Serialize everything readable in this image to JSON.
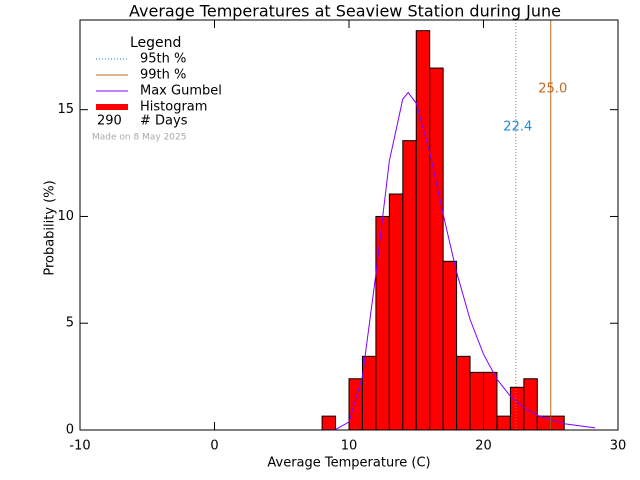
{
  "chart_data": {
    "type": "histogram",
    "title": "Average Temperatures at Seaview Station during June",
    "xlabel": "Average Temperature (C)",
    "ylabel": "Probability (%)",
    "name": "Histogram",
    "color": "#ff0000",
    "bins": [
      8,
      9,
      10,
      11,
      12,
      13,
      14,
      15,
      16,
      17,
      18,
      19,
      20,
      21,
      22,
      23,
      24,
      25,
      26
    ],
    "counts": [
      0.65,
      0,
      2.4,
      3.45,
      10.0,
      11.05,
      13.55,
      18.7,
      16.95,
      7.9,
      3.45,
      2.7,
      2.7,
      0.65,
      2.0,
      2.4,
      0.65,
      0.65
    ],
    "xlim": [
      -10,
      30
    ],
    "ylim": [
      0,
      19.2
    ],
    "xticks": [
      -10,
      0,
      10,
      20,
      30
    ],
    "yticks": [
      0,
      5,
      10,
      15
    ],
    "curve": {
      "name": "Max Gumbel",
      "color": "#8000ff",
      "x": [
        8,
        9,
        10,
        11,
        12,
        13,
        14,
        14.4,
        15,
        16,
        17,
        18,
        19,
        20,
        21,
        22,
        23,
        24,
        26,
        28.3
      ],
      "values": [
        0,
        0.02,
        0.38,
        2.51,
        7.3,
        12.6,
        15.5,
        15.8,
        15.3,
        13.0,
        10.1,
        7.39,
        5.18,
        3.55,
        2.38,
        1.58,
        1.04,
        0.69,
        0.29,
        0.1
      ]
    },
    "percentiles": [
      {
        "name": "95th %",
        "value": 22.4,
        "value_label": "22.4",
        "color": "#b08040",
        "label_color": "#1e88d8",
        "dash": true
      },
      {
        "name": "99th %",
        "value": 25.0,
        "value_label": "25.0",
        "color": "#c06a20",
        "label_color": "#c06a20",
        "dash": false
      }
    ],
    "legend_title": "Legend",
    "days": 290,
    "days_label": "# Days",
    "note": "Made on 8 May 2025"
  }
}
